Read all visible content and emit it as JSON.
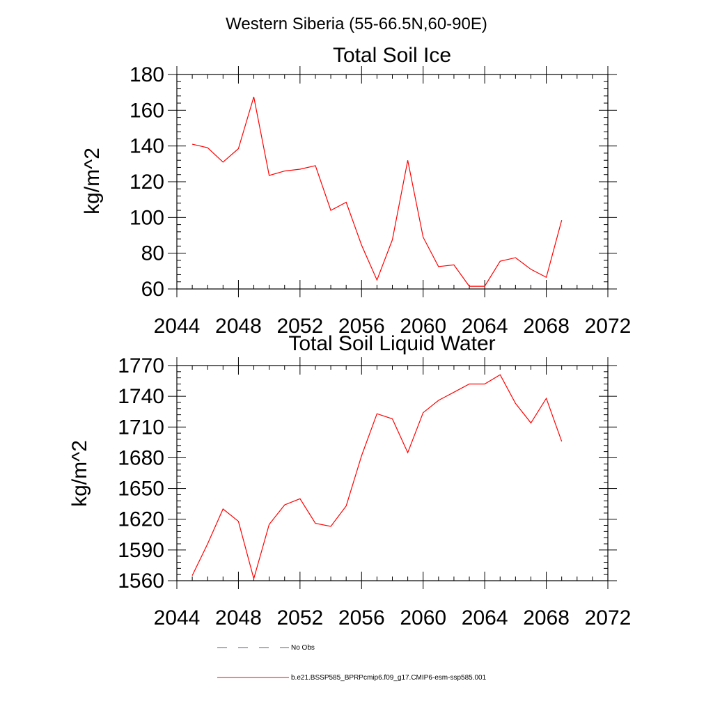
{
  "figure_title": "Western Siberia (55-66.5N,60-90E)",
  "chart_data": [
    {
      "type": "line",
      "title": "Total Soil Ice",
      "xlabel": "",
      "ylabel": "kg/m^2",
      "xlim": [
        2044,
        2072
      ],
      "ylim": [
        60,
        180
      ],
      "xticks": [
        2044,
        2048,
        2052,
        2056,
        2060,
        2064,
        2068,
        2072
      ],
      "yticks": [
        60,
        80,
        100,
        120,
        140,
        160,
        180
      ],
      "grid": false,
      "series": [
        {
          "name": "b.e21.BSSP585_BPRPcmip6.f09_g17.CMIP6-esm-ssp585.001",
          "color": "#ff0000",
          "x": [
            2045,
            2046,
            2047,
            2048,
            2049,
            2050,
            2051,
            2052,
            2053,
            2054,
            2055,
            2056,
            2057,
            2058,
            2059,
            2060,
            2061,
            2062,
            2063,
            2064,
            2065,
            2066,
            2067,
            2068,
            2069
          ],
          "y": [
            141,
            139,
            131,
            138.5,
            167.5,
            123.5,
            126,
            127,
            129,
            104,
            108.5,
            84.5,
            65,
            87.5,
            132,
            89,
            72.5,
            73.5,
            61.5,
            61.5,
            75.5,
            77.5,
            71,
            66.5,
            98.5
          ]
        }
      ]
    },
    {
      "type": "line",
      "title": "Total Soil Liquid Water",
      "xlabel": "",
      "ylabel": "kg/m^2",
      "xlim": [
        2044,
        2072
      ],
      "ylim": [
        1560,
        1770
      ],
      "xticks": [
        2044,
        2048,
        2052,
        2056,
        2060,
        2064,
        2068,
        2072
      ],
      "yticks": [
        1560,
        1590,
        1620,
        1650,
        1680,
        1710,
        1740,
        1770
      ],
      "grid": false,
      "series": [
        {
          "name": "b.e21.BSSP585_BPRPcmip6.f09_g17.CMIP6-esm-ssp585.001",
          "color": "#ff0000",
          "x": [
            2045,
            2046,
            2047,
            2048,
            2049,
            2050,
            2051,
            2052,
            2053,
            2054,
            2055,
            2056,
            2057,
            2058,
            2059,
            2060,
            2061,
            2062,
            2063,
            2064,
            2065,
            2066,
            2067,
            2068,
            2069
          ],
          "y": [
            1565,
            1596,
            1630,
            1618,
            1562,
            1615,
            1634,
            1640,
            1616,
            1613,
            1633,
            1682,
            1723,
            1718,
            1685,
            1724,
            1736,
            1744,
            1752,
            1752,
            1761,
            1733,
            1714,
            1738,
            1696
          ]
        }
      ]
    }
  ],
  "legend": [
    {
      "label": "No Obs",
      "style": "dashed",
      "color": "#5a5a8a"
    },
    {
      "label": "b.e21.BSSP585_BPRPcmip6.f09_g17.CMIP6-esm-ssp585.001",
      "style": "solid",
      "color": "#ff0000"
    }
  ]
}
